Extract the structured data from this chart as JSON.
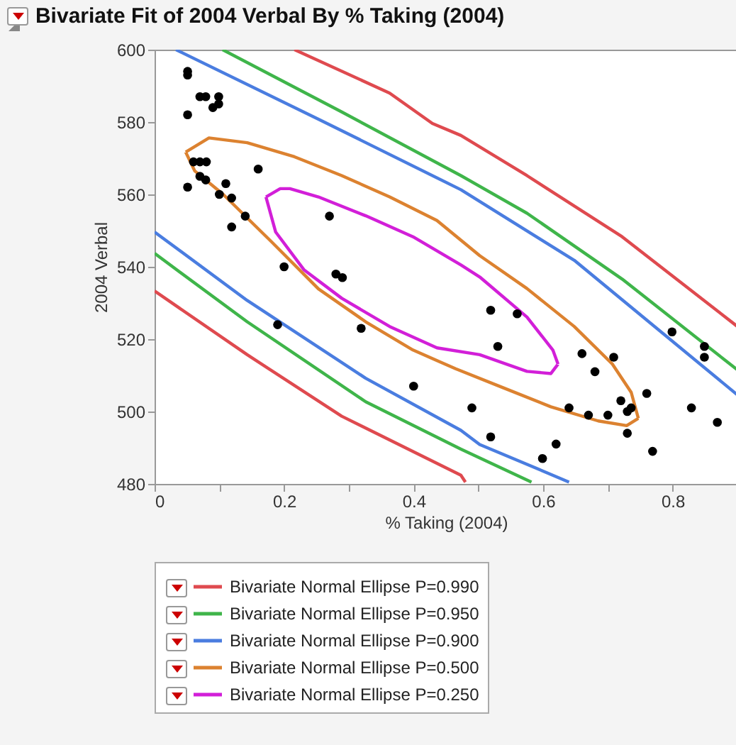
{
  "chart_data": {
    "type": "scatter",
    "title": "Bivariate Fit of 2004 Verbal By % Taking (2004)",
    "xlabel": "% Taking (2004)",
    "ylabel": "2004 Verbal",
    "xlim": [
      0,
      0.9
    ],
    "ylim": [
      480,
      600
    ],
    "xticks": [
      0,
      {
        "value": 0.1,
        "label": null
      },
      0.2,
      {
        "value": 0.3,
        "label": null
      },
      0.4,
      {
        "value": 0.5,
        "label": null
      },
      0.6,
      {
        "value": 0.7,
        "label": null
      },
      0.8,
      {
        "value": 0.9,
        "label": null
      }
    ],
    "yticks": [
      480,
      500,
      520,
      540,
      560,
      580,
      600
    ],
    "grid": false,
    "legend": "bottom",
    "series": [
      {
        "type": "scatter",
        "marker": "circle",
        "color": "#000000",
        "x": [
          0.051,
          0.051,
          0.051,
          0.07,
          0.079,
          0.099,
          0.099,
          0.09,
          0.051,
          0.06,
          0.07,
          0.08,
          0.07,
          0.079,
          0.1,
          0.11,
          0.119,
          0.119,
          0.14,
          0.16,
          0.2,
          0.19,
          0.27,
          0.28,
          0.29,
          0.319,
          0.4,
          0.519,
          0.56,
          0.53,
          0.49,
          0.519,
          0.599,
          0.62,
          0.64,
          0.66,
          0.67,
          0.68,
          0.7,
          0.709,
          0.72,
          0.73,
          0.736,
          0.73,
          0.76,
          0.769,
          0.799,
          0.829,
          0.849,
          0.849,
          0.869
        ],
        "values": [
          594,
          593,
          582,
          587,
          587,
          587,
          585,
          584,
          562,
          569,
          569,
          569,
          565,
          564,
          560,
          563,
          559,
          551,
          554,
          567,
          540,
          524,
          554,
          538,
          537,
          523,
          507,
          528,
          527,
          518,
          501,
          493,
          487,
          491,
          501,
          516,
          499,
          511,
          499,
          515,
          503,
          500,
          501,
          494,
          505,
          489,
          522,
          501,
          518,
          515,
          497
        ]
      },
      {
        "type": "line",
        "name": "Bivariate Normal Ellipse P=0.990",
        "color": "#df4a4f",
        "x": [
          0.216,
          0.363,
          0.429,
          0.473,
          0.575,
          0.722,
          0.9,
          0.5,
          0,
          0.143,
          0.289,
          0.473,
          0.48
        ],
        "values": [
          600,
          588,
          579.6,
          576.3,
          565.2,
          548.3,
          523.5,
          null,
          533.3,
          515.7,
          498.7,
          482.4,
          480.5
        ]
      },
      {
        "type": "line",
        "name": "Bivariate Normal Ellipse P=0.950",
        "color": "#3fb54a",
        "x": [
          0.105,
          0.289,
          0.473,
          0.575,
          0.722,
          0.9,
          0.5,
          0,
          0.143,
          0.326,
          0.473,
          0.582
        ],
        "values": [
          600,
          582.8,
          565.2,
          554.8,
          536.6,
          511.5,
          null,
          543.7,
          524.8,
          502.7,
          489.6,
          480.5
        ]
      },
      {
        "type": "line",
        "name": "Bivariate Normal Ellipse P=0.900",
        "color": "#4a7de0",
        "x": [
          0.033,
          0.253,
          0.473,
          0.648,
          0.9,
          0.5,
          0,
          0.143,
          0.326,
          0.473,
          0.502,
          0.64
        ],
        "values": [
          600,
          580.8,
          561.3,
          541.8,
          504.6,
          null,
          549.6,
          530.7,
          509.2,
          494.8,
          490.9,
          480.5
        ]
      },
      {
        "type": "line",
        "name": "Bivariate Normal Ellipse P=0.500",
        "color": "#dc8230",
        "x": [
          0.048,
          0.084,
          0.143,
          0.216,
          0.289,
          0.363,
          0.436,
          0.502,
          0.575,
          0.648,
          0.707,
          0.736,
          0.747,
          0.4,
          0.048,
          0.062,
          0.106,
          0.18,
          0.253,
          0.326,
          0.399,
          0.465,
          0.538,
          0.612,
          0.685,
          0.729,
          0.747
        ],
        "values": [
          571.7,
          575.6,
          574.3,
          570.4,
          565.2,
          559.3,
          552.8,
          543.1,
          534,
          523.5,
          513.1,
          505.3,
          498.1,
          null,
          571.7,
          566.5,
          560,
          547,
          533.9,
          524.8,
          517,
          511.8,
          506.6,
          501.3,
          497.4,
          496.1,
          498.1
        ]
      },
      {
        "type": "line",
        "name": "Bivariate Normal Ellipse P=0.250",
        "color": "#d21fd8",
        "x": [
          0.172,
          0.194,
          0.209,
          0.253,
          0.326,
          0.399,
          0.473,
          0.502,
          0.575,
          0.615,
          0.623,
          0.4,
          0.172,
          0.187,
          0.231,
          0.289,
          0.363,
          0.436,
          0.502,
          0.575,
          0.612,
          0.623
        ],
        "values": [
          559.3,
          561.6,
          561.6,
          559.3,
          554.1,
          548.3,
          540.5,
          537.2,
          526.1,
          517,
          513.1,
          null,
          559.3,
          549.6,
          539.1,
          531.3,
          523.5,
          517.6,
          515.7,
          511.1,
          510.5,
          513.1
        ]
      }
    ]
  }
}
